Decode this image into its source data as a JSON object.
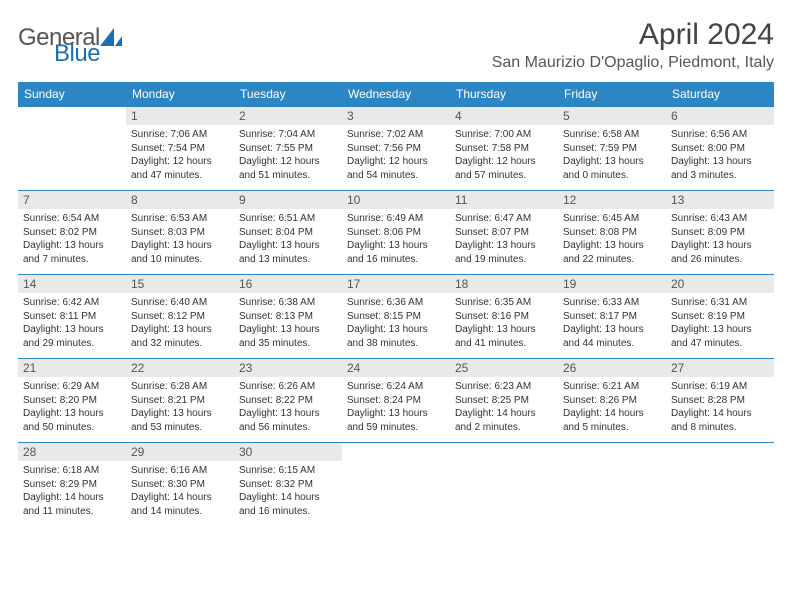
{
  "brand": {
    "part1": "General",
    "part2": "Blue"
  },
  "title": "April 2024",
  "location": "San Maurizio D'Opaglio, Piedmont, Italy",
  "colors": {
    "header_bg": "#2d86c4",
    "header_fg": "#ffffff",
    "daynum_bg": "#e9e9e9",
    "rule": "#2d86c4",
    "text": "#333333",
    "brand_gray": "#555555",
    "brand_blue": "#1a6fb5"
  },
  "weekdays": [
    "Sunday",
    "Monday",
    "Tuesday",
    "Wednesday",
    "Thursday",
    "Friday",
    "Saturday"
  ],
  "weeks": [
    [
      null,
      {
        "n": "1",
        "sr": "Sunrise: 7:06 AM",
        "ss": "Sunset: 7:54 PM",
        "dl": "Daylight: 12 hours and 47 minutes."
      },
      {
        "n": "2",
        "sr": "Sunrise: 7:04 AM",
        "ss": "Sunset: 7:55 PM",
        "dl": "Daylight: 12 hours and 51 minutes."
      },
      {
        "n": "3",
        "sr": "Sunrise: 7:02 AM",
        "ss": "Sunset: 7:56 PM",
        "dl": "Daylight: 12 hours and 54 minutes."
      },
      {
        "n": "4",
        "sr": "Sunrise: 7:00 AM",
        "ss": "Sunset: 7:58 PM",
        "dl": "Daylight: 12 hours and 57 minutes."
      },
      {
        "n": "5",
        "sr": "Sunrise: 6:58 AM",
        "ss": "Sunset: 7:59 PM",
        "dl": "Daylight: 13 hours and 0 minutes."
      },
      {
        "n": "6",
        "sr": "Sunrise: 6:56 AM",
        "ss": "Sunset: 8:00 PM",
        "dl": "Daylight: 13 hours and 3 minutes."
      }
    ],
    [
      {
        "n": "7",
        "sr": "Sunrise: 6:54 AM",
        "ss": "Sunset: 8:02 PM",
        "dl": "Daylight: 13 hours and 7 minutes."
      },
      {
        "n": "8",
        "sr": "Sunrise: 6:53 AM",
        "ss": "Sunset: 8:03 PM",
        "dl": "Daylight: 13 hours and 10 minutes."
      },
      {
        "n": "9",
        "sr": "Sunrise: 6:51 AM",
        "ss": "Sunset: 8:04 PM",
        "dl": "Daylight: 13 hours and 13 minutes."
      },
      {
        "n": "10",
        "sr": "Sunrise: 6:49 AM",
        "ss": "Sunset: 8:06 PM",
        "dl": "Daylight: 13 hours and 16 minutes."
      },
      {
        "n": "11",
        "sr": "Sunrise: 6:47 AM",
        "ss": "Sunset: 8:07 PM",
        "dl": "Daylight: 13 hours and 19 minutes."
      },
      {
        "n": "12",
        "sr": "Sunrise: 6:45 AM",
        "ss": "Sunset: 8:08 PM",
        "dl": "Daylight: 13 hours and 22 minutes."
      },
      {
        "n": "13",
        "sr": "Sunrise: 6:43 AM",
        "ss": "Sunset: 8:09 PM",
        "dl": "Daylight: 13 hours and 26 minutes."
      }
    ],
    [
      {
        "n": "14",
        "sr": "Sunrise: 6:42 AM",
        "ss": "Sunset: 8:11 PM",
        "dl": "Daylight: 13 hours and 29 minutes."
      },
      {
        "n": "15",
        "sr": "Sunrise: 6:40 AM",
        "ss": "Sunset: 8:12 PM",
        "dl": "Daylight: 13 hours and 32 minutes."
      },
      {
        "n": "16",
        "sr": "Sunrise: 6:38 AM",
        "ss": "Sunset: 8:13 PM",
        "dl": "Daylight: 13 hours and 35 minutes."
      },
      {
        "n": "17",
        "sr": "Sunrise: 6:36 AM",
        "ss": "Sunset: 8:15 PM",
        "dl": "Daylight: 13 hours and 38 minutes."
      },
      {
        "n": "18",
        "sr": "Sunrise: 6:35 AM",
        "ss": "Sunset: 8:16 PM",
        "dl": "Daylight: 13 hours and 41 minutes."
      },
      {
        "n": "19",
        "sr": "Sunrise: 6:33 AM",
        "ss": "Sunset: 8:17 PM",
        "dl": "Daylight: 13 hours and 44 minutes."
      },
      {
        "n": "20",
        "sr": "Sunrise: 6:31 AM",
        "ss": "Sunset: 8:19 PM",
        "dl": "Daylight: 13 hours and 47 minutes."
      }
    ],
    [
      {
        "n": "21",
        "sr": "Sunrise: 6:29 AM",
        "ss": "Sunset: 8:20 PM",
        "dl": "Daylight: 13 hours and 50 minutes."
      },
      {
        "n": "22",
        "sr": "Sunrise: 6:28 AM",
        "ss": "Sunset: 8:21 PM",
        "dl": "Daylight: 13 hours and 53 minutes."
      },
      {
        "n": "23",
        "sr": "Sunrise: 6:26 AM",
        "ss": "Sunset: 8:22 PM",
        "dl": "Daylight: 13 hours and 56 minutes."
      },
      {
        "n": "24",
        "sr": "Sunrise: 6:24 AM",
        "ss": "Sunset: 8:24 PM",
        "dl": "Daylight: 13 hours and 59 minutes."
      },
      {
        "n": "25",
        "sr": "Sunrise: 6:23 AM",
        "ss": "Sunset: 8:25 PM",
        "dl": "Daylight: 14 hours and 2 minutes."
      },
      {
        "n": "26",
        "sr": "Sunrise: 6:21 AM",
        "ss": "Sunset: 8:26 PM",
        "dl": "Daylight: 14 hours and 5 minutes."
      },
      {
        "n": "27",
        "sr": "Sunrise: 6:19 AM",
        "ss": "Sunset: 8:28 PM",
        "dl": "Daylight: 14 hours and 8 minutes."
      }
    ],
    [
      {
        "n": "28",
        "sr": "Sunrise: 6:18 AM",
        "ss": "Sunset: 8:29 PM",
        "dl": "Daylight: 14 hours and 11 minutes."
      },
      {
        "n": "29",
        "sr": "Sunrise: 6:16 AM",
        "ss": "Sunset: 8:30 PM",
        "dl": "Daylight: 14 hours and 14 minutes."
      },
      {
        "n": "30",
        "sr": "Sunrise: 6:15 AM",
        "ss": "Sunset: 8:32 PM",
        "dl": "Daylight: 14 hours and 16 minutes."
      },
      null,
      null,
      null,
      null
    ]
  ]
}
